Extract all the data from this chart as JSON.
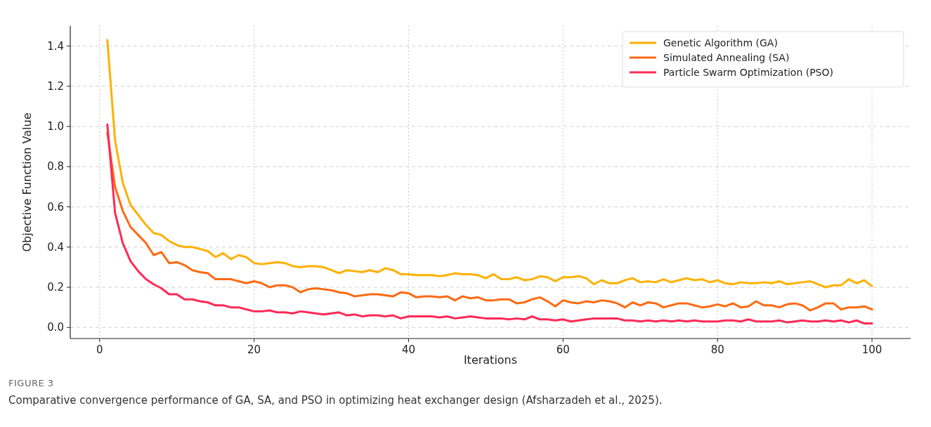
{
  "chart_data": {
    "type": "line",
    "xlabel": "Iterations",
    "ylabel": "Objective Function Value",
    "x": [
      1,
      2,
      3,
      4,
      5,
      6,
      7,
      8,
      9,
      10,
      11,
      12,
      13,
      14,
      15,
      16,
      17,
      18,
      19,
      20,
      21,
      22,
      23,
      24,
      25,
      26,
      27,
      28,
      29,
      30,
      31,
      32,
      33,
      34,
      35,
      36,
      37,
      38,
      39,
      40,
      41,
      42,
      43,
      44,
      45,
      46,
      47,
      48,
      49,
      50,
      51,
      52,
      53,
      54,
      55,
      56,
      57,
      58,
      59,
      60,
      61,
      62,
      63,
      64,
      65,
      66,
      67,
      68,
      69,
      70,
      71,
      72,
      73,
      74,
      75,
      76,
      77,
      78,
      79,
      80,
      81,
      82,
      83,
      84,
      85,
      86,
      87,
      88,
      89,
      90,
      91,
      92,
      93,
      94,
      95,
      96,
      97,
      98,
      99,
      100
    ],
    "series": [
      {
        "name": "Genetic Algorithm (GA)",
        "color": "#ffb000",
        "values": [
          1.43,
          0.93,
          0.72,
          0.61,
          0.56,
          0.51,
          0.47,
          0.46,
          0.43,
          0.41,
          0.4,
          0.4,
          0.39,
          0.38,
          0.35,
          0.37,
          0.34,
          0.36,
          0.35,
          0.32,
          0.315,
          0.32,
          0.325,
          0.32,
          0.305,
          0.3,
          0.305,
          0.305,
          0.3,
          0.285,
          0.27,
          0.285,
          0.28,
          0.275,
          0.285,
          0.275,
          0.295,
          0.285,
          0.265,
          0.265,
          0.26,
          0.26,
          0.26,
          0.255,
          0.26,
          0.27,
          0.265,
          0.265,
          0.26,
          0.245,
          0.265,
          0.24,
          0.24,
          0.25,
          0.235,
          0.24,
          0.255,
          0.25,
          0.23,
          0.25,
          0.25,
          0.255,
          0.245,
          0.215,
          0.235,
          0.22,
          0.22,
          0.235,
          0.245,
          0.225,
          0.23,
          0.225,
          0.24,
          0.225,
          0.235,
          0.245,
          0.235,
          0.24,
          0.225,
          0.235,
          0.22,
          0.215,
          0.225,
          0.22,
          0.22,
          0.225,
          0.22,
          0.23,
          0.215,
          0.22,
          0.225,
          0.23,
          0.215,
          0.2,
          0.21,
          0.21,
          0.24,
          0.22,
          0.235,
          0.205
        ]
      },
      {
        "name": "Simulated Annealing (SA)",
        "color": "#ff6a13",
        "values": [
          0.97,
          0.7,
          0.58,
          0.5,
          0.46,
          0.42,
          0.36,
          0.375,
          0.32,
          0.325,
          0.31,
          0.285,
          0.275,
          0.27,
          0.24,
          0.24,
          0.24,
          0.23,
          0.22,
          0.23,
          0.22,
          0.2,
          0.21,
          0.21,
          0.2,
          0.175,
          0.19,
          0.195,
          0.19,
          0.185,
          0.175,
          0.17,
          0.155,
          0.16,
          0.165,
          0.165,
          0.16,
          0.155,
          0.175,
          0.17,
          0.15,
          0.155,
          0.155,
          0.15,
          0.155,
          0.135,
          0.155,
          0.145,
          0.15,
          0.135,
          0.135,
          0.14,
          0.14,
          0.12,
          0.125,
          0.14,
          0.15,
          0.13,
          0.105,
          0.135,
          0.125,
          0.12,
          0.13,
          0.125,
          0.135,
          0.13,
          0.12,
          0.1,
          0.125,
          0.11,
          0.125,
          0.12,
          0.1,
          0.11,
          0.12,
          0.12,
          0.11,
          0.1,
          0.105,
          0.115,
          0.105,
          0.12,
          0.1,
          0.105,
          0.13,
          0.11,
          0.11,
          0.1,
          0.115,
          0.12,
          0.11,
          0.085,
          0.1,
          0.12,
          0.12,
          0.09,
          0.1,
          0.1,
          0.105,
          0.09
        ]
      },
      {
        "name": "Particle Swarm Optimization (PSO)",
        "color": "#ff2a55",
        "values": [
          1.01,
          0.57,
          0.42,
          0.33,
          0.28,
          0.24,
          0.215,
          0.195,
          0.165,
          0.165,
          0.14,
          0.14,
          0.13,
          0.125,
          0.11,
          0.11,
          0.1,
          0.1,
          0.09,
          0.08,
          0.08,
          0.085,
          0.075,
          0.075,
          0.07,
          0.08,
          0.075,
          0.07,
          0.065,
          0.07,
          0.075,
          0.06,
          0.065,
          0.055,
          0.06,
          0.06,
          0.055,
          0.06,
          0.045,
          0.055,
          0.055,
          0.055,
          0.055,
          0.05,
          0.055,
          0.045,
          0.05,
          0.055,
          0.05,
          0.045,
          0.045,
          0.045,
          0.04,
          0.045,
          0.04,
          0.055,
          0.04,
          0.04,
          0.035,
          0.04,
          0.03,
          0.035,
          0.04,
          0.045,
          0.045,
          0.045,
          0.045,
          0.035,
          0.035,
          0.03,
          0.035,
          0.03,
          0.035,
          0.03,
          0.035,
          0.03,
          0.035,
          0.03,
          0.03,
          0.03,
          0.035,
          0.035,
          0.03,
          0.04,
          0.03,
          0.03,
          0.03,
          0.035,
          0.025,
          0.03,
          0.035,
          0.03,
          0.03,
          0.035,
          0.03,
          0.035,
          0.025,
          0.035,
          0.02,
          0.02
        ]
      }
    ],
    "xlim": [
      -3.8,
      105
    ],
    "xticks": [
      0,
      20,
      40,
      60,
      80,
      100
    ],
    "ylim": [
      -0.055,
      1.5
    ],
    "yticks": [
      {
        "value": 0,
        "label": "0.0"
      },
      {
        "value": 0.2,
        "label": "0.2"
      },
      {
        "value": 0.4,
        "label": "0.4"
      },
      {
        "value": 0.6,
        "label": "0.6"
      },
      {
        "value": 0.8,
        "label": "0.8"
      },
      {
        "value": 1,
        "label": "1.0"
      },
      {
        "value": 1.2,
        "label": "1.2"
      },
      {
        "value": 1.4,
        "label": "1.4"
      }
    ],
    "grid": true,
    "legend": "top right",
    "line_style": "solid",
    "marker": "none",
    "annotations": [
      "FIGURE 3",
      "Comparative convergence performance of GA, SA, and PSO in optimizing heat exchanger design (Afsharzadeh et al., 2025)."
    ]
  }
}
